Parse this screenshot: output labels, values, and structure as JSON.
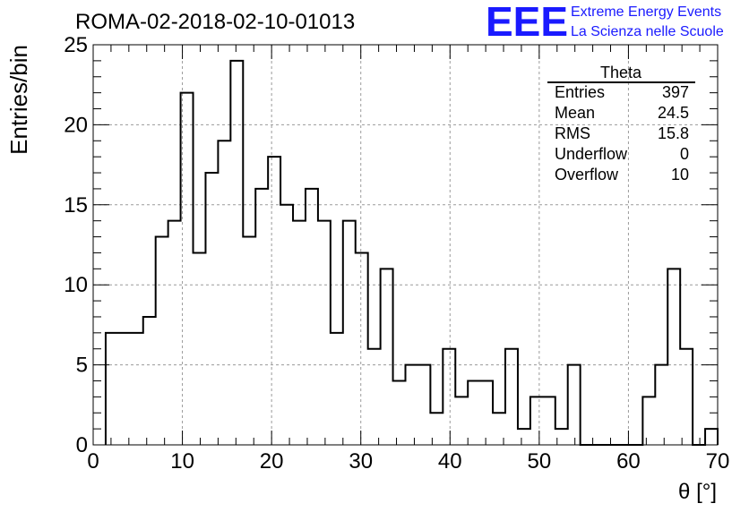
{
  "chart_data": {
    "type": "histogram",
    "title": "ROMA-02-2018-02-10-01013",
    "xlabel": "θ [°]",
    "ylabel": "Entries/bin",
    "xlim": [
      0,
      70
    ],
    "ylim": [
      0,
      25
    ],
    "xticks": [
      0,
      10,
      20,
      30,
      40,
      50,
      60,
      70
    ],
    "yticks": [
      0,
      5,
      10,
      15,
      20,
      25
    ],
    "grid": true,
    "bin_edges_start": 1.4,
    "bin_width": 1.4,
    "counts": [
      7,
      7,
      7,
      8,
      13,
      14,
      22,
      12,
      17,
      19,
      24,
      13,
      16,
      18,
      15,
      14,
      16,
      14,
      7,
      14,
      12,
      6,
      11,
      4,
      5,
      5,
      2,
      6,
      3,
      4,
      4,
      2,
      6,
      1,
      3,
      3,
      1,
      5,
      0,
      0,
      0,
      0,
      0,
      3,
      5,
      11,
      6,
      0,
      1
    ],
    "stats_box": {
      "title": "Theta",
      "rows": [
        {
          "label": "Entries",
          "value": "397"
        },
        {
          "label": "Mean",
          "value": "24.5"
        },
        {
          "label": "RMS",
          "value": "15.8"
        },
        {
          "label": "Underflow",
          "value": "0"
        },
        {
          "label": "Overflow",
          "value": "10"
        }
      ]
    }
  },
  "branding": {
    "logo": "EEE",
    "line1": "Extreme Energy Events",
    "line2": "La Scienza nelle Scuole",
    "color": "#1a1aff"
  }
}
